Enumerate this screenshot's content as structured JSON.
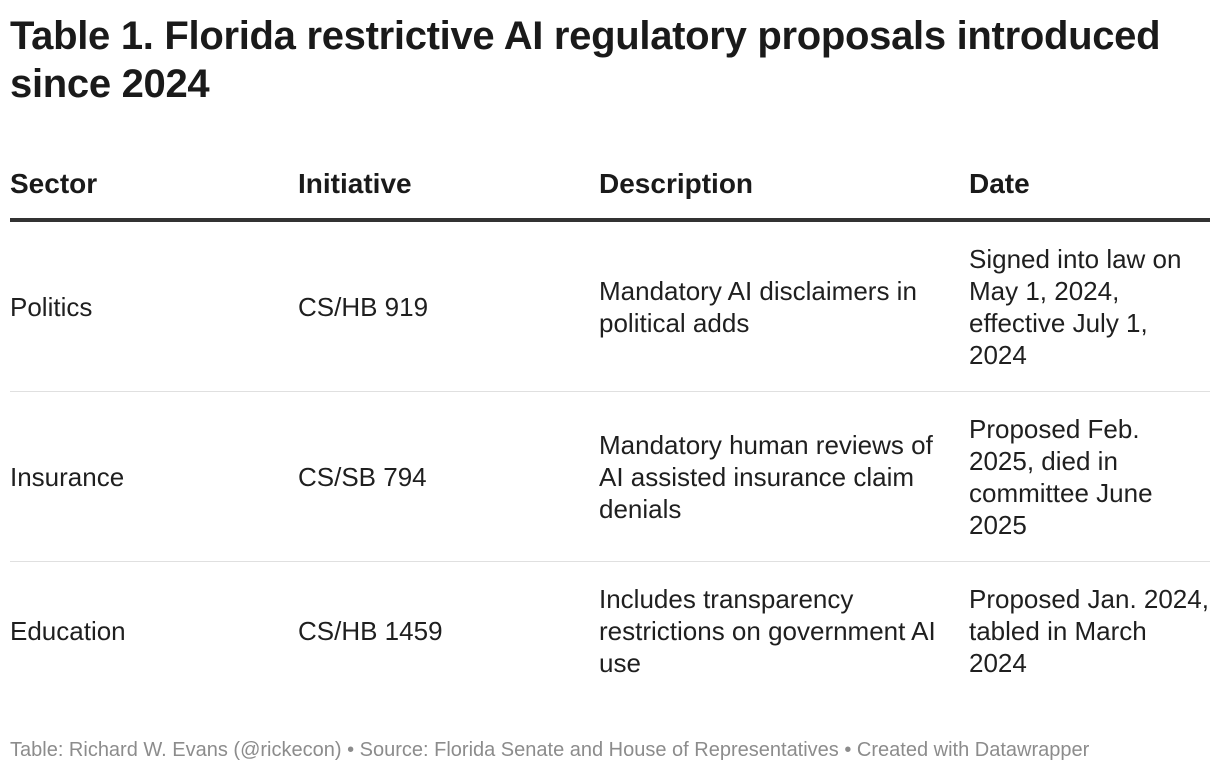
{
  "title": "Table 1. Florida restrictive AI regulatory proposals introduced since 2024",
  "table": {
    "headers": {
      "sector": "Sector",
      "initiative": "Initiative",
      "description": "Description",
      "date": "Date"
    },
    "rows": [
      {
        "sector": "Politics",
        "initiative": "CS/HB 919",
        "description": "Mandatory AI disclaimers in political adds",
        "date": "Signed into law on May 1, 2024, effective July 1, 2024"
      },
      {
        "sector": "Insurance",
        "initiative": "CS/SB 794",
        "description": "Mandatory human reviews of AI assisted insurance claim denials",
        "date": "Proposed Feb. 2025, died in committee June 2025"
      },
      {
        "sector": "Education",
        "initiative": "CS/HB 1459",
        "description": "Includes transparency restrictions on government AI use",
        "date": "Proposed Jan. 2024, tabled in March 2024"
      }
    ]
  },
  "footer": "Table: Richard W. Evans (@rickecon) • Source: Florida Senate and House of Representatives • Created with Datawrapper"
}
